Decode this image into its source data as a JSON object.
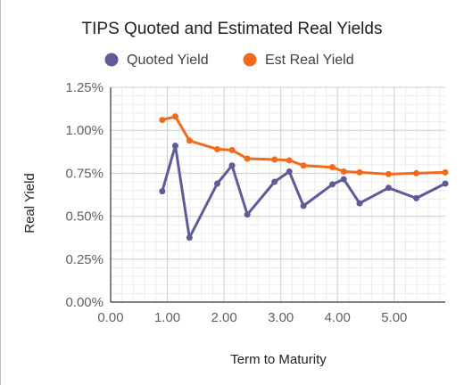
{
  "chart_data": {
    "type": "line",
    "title": "TIPS Quoted and Estimated Real Yields",
    "xlabel": "Term to Maturity",
    "ylabel": "Real Yield",
    "xlim": [
      0,
      5.9
    ],
    "ylim": [
      0,
      1.25
    ],
    "x_ticks": [
      "0.00",
      "1.00",
      "2.00",
      "3.00",
      "4.00",
      "5.00"
    ],
    "y_ticks": [
      "0.00%",
      "0.25%",
      "0.50%",
      "0.75%",
      "1.00%",
      "1.25%"
    ],
    "grid": true,
    "legend_position": "top",
    "series": [
      {
        "name": "Quoted Yield",
        "color": "#5e5b99",
        "x": [
          0.91,
          1.14,
          1.39,
          1.88,
          2.14,
          2.41,
          2.89,
          3.15,
          3.4,
          3.91,
          4.11,
          4.39,
          4.9,
          5.39,
          5.9
        ],
        "y": [
          0.645,
          0.91,
          0.375,
          0.69,
          0.795,
          0.51,
          0.7,
          0.76,
          0.56,
          0.685,
          0.715,
          0.575,
          0.665,
          0.605,
          0.69
        ]
      },
      {
        "name": "Est Real Yield",
        "color": "#f26b1d",
        "x": [
          0.91,
          1.14,
          1.39,
          1.88,
          2.14,
          2.41,
          2.89,
          3.15,
          3.4,
          3.91,
          4.11,
          4.39,
          4.9,
          5.39,
          5.9
        ],
        "y": [
          1.06,
          1.08,
          0.94,
          0.89,
          0.885,
          0.835,
          0.83,
          0.825,
          0.795,
          0.785,
          0.76,
          0.755,
          0.745,
          0.75,
          0.755
        ]
      }
    ]
  }
}
